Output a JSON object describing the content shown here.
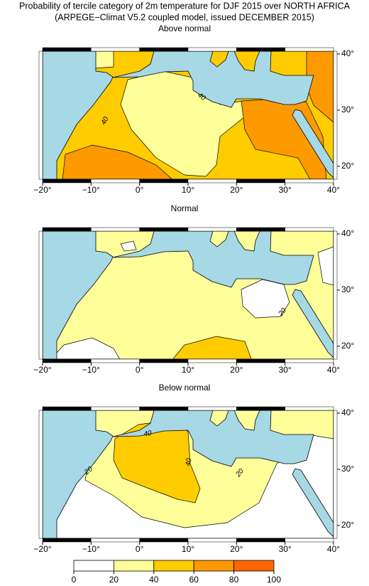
{
  "title": "Probability of tercile category of 2m temperature for DJF 2015 over NORTH AFRICA",
  "subtitle": "(ARPEGE−Climat V5.2 coupled model, issued DECEMBER  2015)",
  "lon_lim": [
    -20,
    40
  ],
  "lat_lim": [
    17.7,
    40.5
  ],
  "lon_ticks": [
    {
      "value": -20,
      "label": "−20°"
    },
    {
      "value": -10,
      "label": "−10°"
    },
    {
      "value": 0,
      "label": "0°"
    },
    {
      "value": 10,
      "label": "10°"
    },
    {
      "value": 20,
      "label": "20°"
    },
    {
      "value": 30,
      "label": "30°"
    },
    {
      "value": 40,
      "label": "40°"
    }
  ],
  "lat_ticks": [
    {
      "value": 20,
      "label": "20°"
    },
    {
      "value": 30,
      "label": "30°"
    },
    {
      "value": 40,
      "label": "40°"
    }
  ],
  "panels": [
    {
      "title": "Above normal",
      "contour_labels": [
        40,
        40
      ]
    },
    {
      "title": "Normal",
      "contour_labels": [
        20
      ]
    },
    {
      "title": "Below normal",
      "contour_labels": [
        40,
        40,
        20,
        20
      ]
    }
  ],
  "colorbar": {
    "ticks": [
      0,
      20,
      40,
      60,
      80,
      100
    ],
    "colors": [
      "#ffffff",
      "#ffff99",
      "#ffcc00",
      "#ff9900",
      "#ff6600"
    ]
  }
}
